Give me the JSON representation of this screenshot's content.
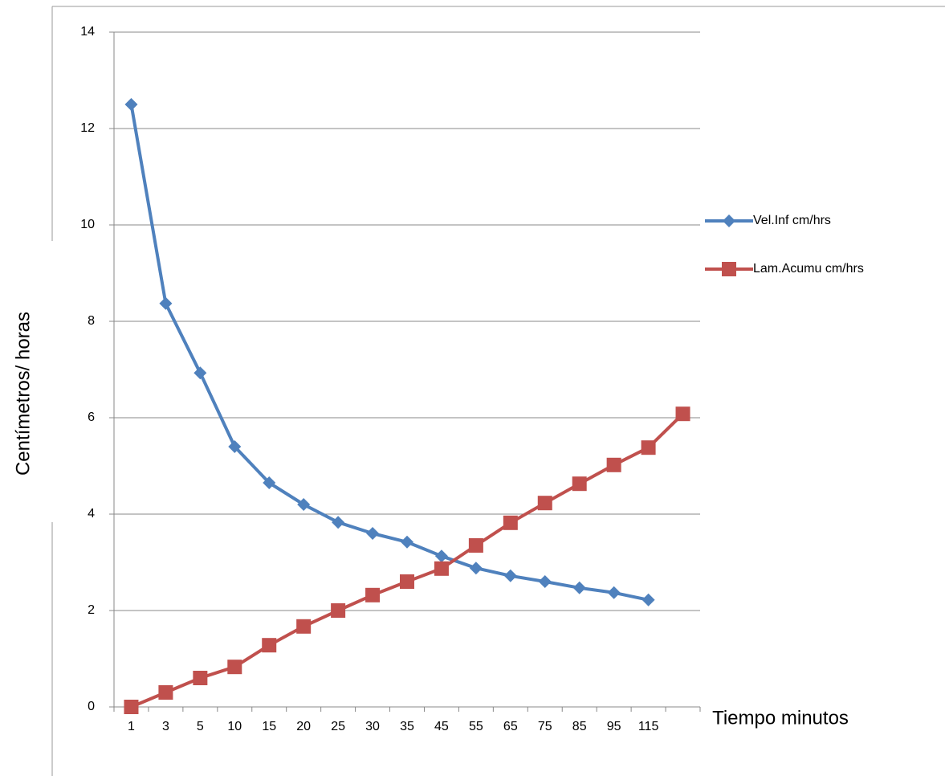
{
  "chart_data": {
    "type": "line",
    "x_label": "Tiempo minutos",
    "y_label": "Centímetros/  horas",
    "categories": [
      "1",
      "3",
      "5",
      "10",
      "15",
      "20",
      "25",
      "30",
      "35",
      "45",
      "55",
      "65",
      "75",
      "85",
      "95",
      "115",
      null
    ],
    "series": [
      {
        "name": "Vel.Inf  cm/hrs",
        "color": "#4f81bd",
        "marker": "diamond",
        "values": [
          12.5,
          8.37,
          6.93,
          5.4,
          4.65,
          4.2,
          3.83,
          3.6,
          3.42,
          3.13,
          2.88,
          2.72,
          2.6,
          2.47,
          2.37,
          2.22,
          null
        ]
      },
      {
        "name": "Lam.Acumu cm/hrs",
        "color": "#c0504d",
        "marker": "square",
        "values": [
          0,
          0.3,
          0.6,
          0.83,
          1.28,
          1.67,
          2.0,
          2.32,
          2.6,
          2.87,
          3.35,
          3.82,
          4.23,
          4.63,
          5.02,
          5.38,
          6.08
        ]
      }
    ],
    "ylim": [
      0,
      14
    ],
    "yticks": [
      0,
      2,
      4,
      6,
      8,
      10,
      12,
      14
    ],
    "grid": true,
    "legend": "right"
  }
}
